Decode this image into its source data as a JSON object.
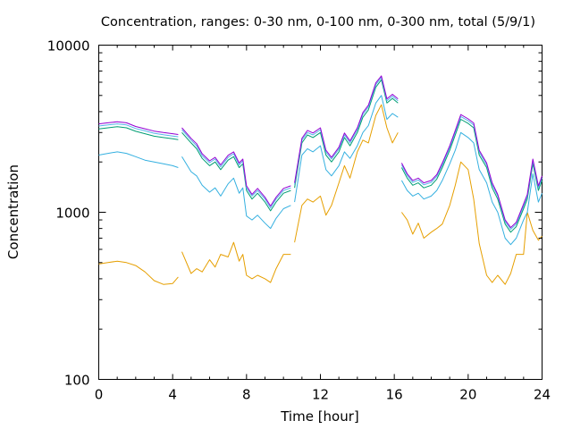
{
  "chart_data": {
    "type": "line",
    "title": "Concentration, ranges: 0-30 nm, 0-100 nm, 0-300 nm, total (5/9/1)",
    "xlabel": "Time [hour]",
    "ylabel": "Concentration",
    "xlim": [
      0,
      24
    ],
    "ylim": [
      100,
      10000
    ],
    "yscale": "log",
    "xticks": [
      "0",
      "4",
      "8",
      "12",
      "16",
      "20",
      "24"
    ],
    "yticks": [
      "100",
      "1000",
      "10000"
    ],
    "grid": false,
    "legend": "none",
    "series": [
      {
        "color": "#e69f00",
        "x": [
          0,
          0.5,
          1,
          1.5,
          2,
          2.5,
          3,
          3.5,
          4,
          4.3,
          null,
          4.5,
          5,
          5.3,
          5.6,
          6,
          6.3,
          6.6,
          7,
          7.3,
          7.6,
          7.8,
          8,
          8.3,
          8.6,
          9,
          9.3,
          9.6,
          10,
          10.4,
          null,
          10.6,
          11,
          11.3,
          11.6,
          12,
          12.3,
          12.6,
          13,
          13.3,
          13.6,
          14,
          14.3,
          14.6,
          15,
          15.3,
          15.6,
          15.9,
          16.2,
          null,
          16.4,
          16.7,
          17,
          17.3,
          17.6,
          18,
          18.3,
          18.6,
          19,
          19.3,
          19.6,
          20,
          20.3,
          20.6,
          21,
          21.3,
          21.6,
          22,
          22.3,
          22.6,
          23,
          23.2,
          23.5,
          23.8,
          24
        ],
        "values": [
          490,
          500,
          510,
          500,
          480,
          440,
          390,
          370,
          375,
          410,
          null,
          580,
          430,
          460,
          440,
          520,
          470,
          560,
          540,
          660,
          510,
          560,
          420,
          400,
          420,
          400,
          380,
          460,
          560,
          560,
          null,
          660,
          1100,
          1200,
          1150,
          1250,
          960,
          1100,
          1500,
          1900,
          1600,
          2300,
          2700,
          2600,
          3800,
          4400,
          3200,
          2600,
          3000,
          null,
          1000,
          900,
          740,
          860,
          700,
          760,
          800,
          850,
          1100,
          1450,
          2000,
          1800,
          1200,
          650,
          420,
          380,
          420,
          370,
          430,
          560,
          560,
          1000,
          780,
          680,
          720
        ]
      },
      {
        "color": "#35b0e0",
        "x": [
          0,
          0.5,
          1,
          1.5,
          2,
          2.5,
          3,
          3.5,
          4,
          4.3,
          null,
          4.5,
          5,
          5.3,
          5.6,
          6,
          6.3,
          6.6,
          7,
          7.3,
          7.6,
          7.8,
          8,
          8.3,
          8.6,
          9,
          9.3,
          9.6,
          10,
          10.4,
          null,
          10.6,
          11,
          11.3,
          11.6,
          12,
          12.3,
          12.6,
          13,
          13.3,
          13.6,
          14,
          14.3,
          14.6,
          15,
          15.3,
          15.6,
          15.9,
          16.2,
          null,
          16.4,
          16.7,
          17,
          17.3,
          17.6,
          18,
          18.3,
          18.6,
          19,
          19.3,
          19.6,
          20,
          20.3,
          20.6,
          21,
          21.3,
          21.6,
          22,
          22.3,
          22.6,
          23,
          23.2,
          23.5,
          23.8,
          24
        ],
        "values": [
          2200,
          2250,
          2300,
          2250,
          2150,
          2050,
          2000,
          1950,
          1900,
          1850,
          null,
          2150,
          1750,
          1650,
          1450,
          1320,
          1400,
          1250,
          1480,
          1600,
          1300,
          1400,
          950,
          900,
          960,
          860,
          800,
          920,
          1050,
          1100,
          null,
          1150,
          2200,
          2400,
          2300,
          2500,
          1800,
          1650,
          1900,
          2300,
          2100,
          2500,
          3000,
          3300,
          4500,
          5000,
          3600,
          3900,
          3700,
          null,
          1550,
          1350,
          1250,
          1300,
          1200,
          1250,
          1350,
          1550,
          1950,
          2350,
          3000,
          2800,
          2600,
          1800,
          1500,
          1150,
          1000,
          700,
          640,
          700,
          900,
          1000,
          1700,
          1150,
          1300
        ]
      },
      {
        "color": "#009e73",
        "x": [
          0,
          0.5,
          1,
          1.5,
          2,
          2.5,
          3,
          3.5,
          4,
          4.3,
          null,
          4.5,
          5,
          5.3,
          5.6,
          6,
          6.3,
          6.6,
          7,
          7.3,
          7.6,
          7.8,
          8,
          8.3,
          8.6,
          9,
          9.3,
          9.6,
          10,
          10.4,
          null,
          10.6,
          11,
          11.3,
          11.6,
          12,
          12.3,
          12.6,
          13,
          13.3,
          13.6,
          14,
          14.3,
          14.6,
          15,
          15.3,
          15.6,
          15.9,
          16.2,
          null,
          16.4,
          16.7,
          17,
          17.3,
          17.6,
          18,
          18.3,
          18.6,
          19,
          19.3,
          19.6,
          20,
          20.3,
          20.6,
          21,
          21.3,
          21.6,
          22,
          22.3,
          22.6,
          23,
          23.2,
          23.5,
          23.8,
          24
        ],
        "values": [
          3150,
          3200,
          3250,
          3200,
          3050,
          2950,
          2850,
          2800,
          2750,
          2720,
          null,
          3000,
          2600,
          2400,
          2100,
          1900,
          2000,
          1800,
          2050,
          2150,
          1850,
          1950,
          1350,
          1200,
          1300,
          1150,
          1020,
          1150,
          1300,
          1350,
          null,
          1400,
          2600,
          2900,
          2800,
          3000,
          2200,
          2000,
          2300,
          2800,
          2500,
          3000,
          3700,
          4100,
          5600,
          6200,
          4500,
          4800,
          4500,
          null,
          1850,
          1600,
          1450,
          1500,
          1400,
          1450,
          1580,
          1850,
          2350,
          2900,
          3600,
          3400,
          3200,
          2200,
          1850,
          1400,
          1200,
          850,
          760,
          820,
          1050,
          1200,
          1950,
          1350,
          1550
        ]
      },
      {
        "color": "#56b4e9",
        "x": [
          0,
          0.5,
          1,
          1.5,
          2,
          2.5,
          3,
          3.5,
          4,
          4.3,
          null,
          4.5,
          5,
          5.3,
          5.6,
          6,
          6.3,
          6.6,
          7,
          7.3,
          7.6,
          7.8,
          8,
          8.3,
          8.6,
          9,
          9.3,
          9.6,
          10,
          10.4,
          null,
          10.6,
          11,
          11.3,
          11.6,
          12,
          12.3,
          12.6,
          13,
          13.3,
          13.6,
          14,
          14.3,
          14.6,
          15,
          15.3,
          15.6,
          15.9,
          16.2,
          null,
          16.4,
          16.7,
          17,
          17.3,
          17.6,
          18,
          18.3,
          18.6,
          19,
          19.3,
          19.6,
          20,
          20.3,
          20.6,
          21,
          21.3,
          21.6,
          22,
          22.3,
          22.6,
          23,
          23.2,
          23.5,
          23.8,
          24
        ],
        "values": [
          3280,
          3330,
          3380,
          3330,
          3170,
          3070,
          2970,
          2910,
          2860,
          2830,
          null,
          3120,
          2700,
          2500,
          2180,
          1980,
          2080,
          1870,
          2130,
          2240,
          1920,
          2030,
          1400,
          1250,
          1350,
          1200,
          1060,
          1200,
          1350,
          1400,
          null,
          1460,
          2700,
          3000,
          2900,
          3120,
          2290,
          2080,
          2390,
          2910,
          2600,
          3120,
          3850,
          4260,
          5800,
          6400,
          4650,
          4950,
          4650,
          null,
          1920,
          1660,
          1510,
          1560,
          1460,
          1510,
          1640,
          1920,
          2440,
          3010,
          3740,
          3530,
          3330,
          2290,
          1920,
          1460,
          1250,
          880,
          790,
          850,
          1090,
          1250,
          2030,
          1400,
          1610
        ]
      },
      {
        "color": "#9400d3",
        "x": [
          0,
          0.5,
          1,
          1.5,
          2,
          2.5,
          3,
          3.5,
          4,
          4.3,
          null,
          4.5,
          5,
          5.3,
          5.6,
          6,
          6.3,
          6.6,
          7,
          7.3,
          7.6,
          7.8,
          8,
          8.3,
          8.6,
          9,
          9.3,
          9.6,
          10,
          10.4,
          null,
          10.6,
          11,
          11.3,
          11.6,
          12,
          12.3,
          12.6,
          13,
          13.3,
          13.6,
          14,
          14.3,
          14.6,
          15,
          15.3,
          15.6,
          15.9,
          16.2,
          null,
          16.4,
          16.7,
          17,
          17.3,
          17.6,
          18,
          18.3,
          18.6,
          19,
          19.3,
          19.6,
          20,
          20.3,
          20.6,
          21,
          21.3,
          21.6,
          22,
          22.3,
          22.6,
          23,
          23.2,
          23.5,
          23.8,
          24
        ],
        "values": [
          3380,
          3430,
          3480,
          3430,
          3260,
          3160,
          3060,
          3000,
          2950,
          2920,
          null,
          3200,
          2770,
          2570,
          2240,
          2030,
          2130,
          1920,
          2190,
          2300,
          1970,
          2080,
          1440,
          1280,
          1390,
          1230,
          1090,
          1230,
          1390,
          1440,
          null,
          1500,
          2770,
          3090,
          2980,
          3200,
          2350,
          2130,
          2450,
          2980,
          2670,
          3200,
          3950,
          4370,
          5950,
          6550,
          4770,
          5080,
          4770,
          null,
          1970,
          1700,
          1550,
          1600,
          1500,
          1550,
          1680,
          1970,
          2500,
          3090,
          3840,
          3620,
          3420,
          2350,
          1970,
          1500,
          1280,
          900,
          810,
          870,
          1120,
          1280,
          2080,
          1440,
          1650
        ]
      }
    ]
  }
}
